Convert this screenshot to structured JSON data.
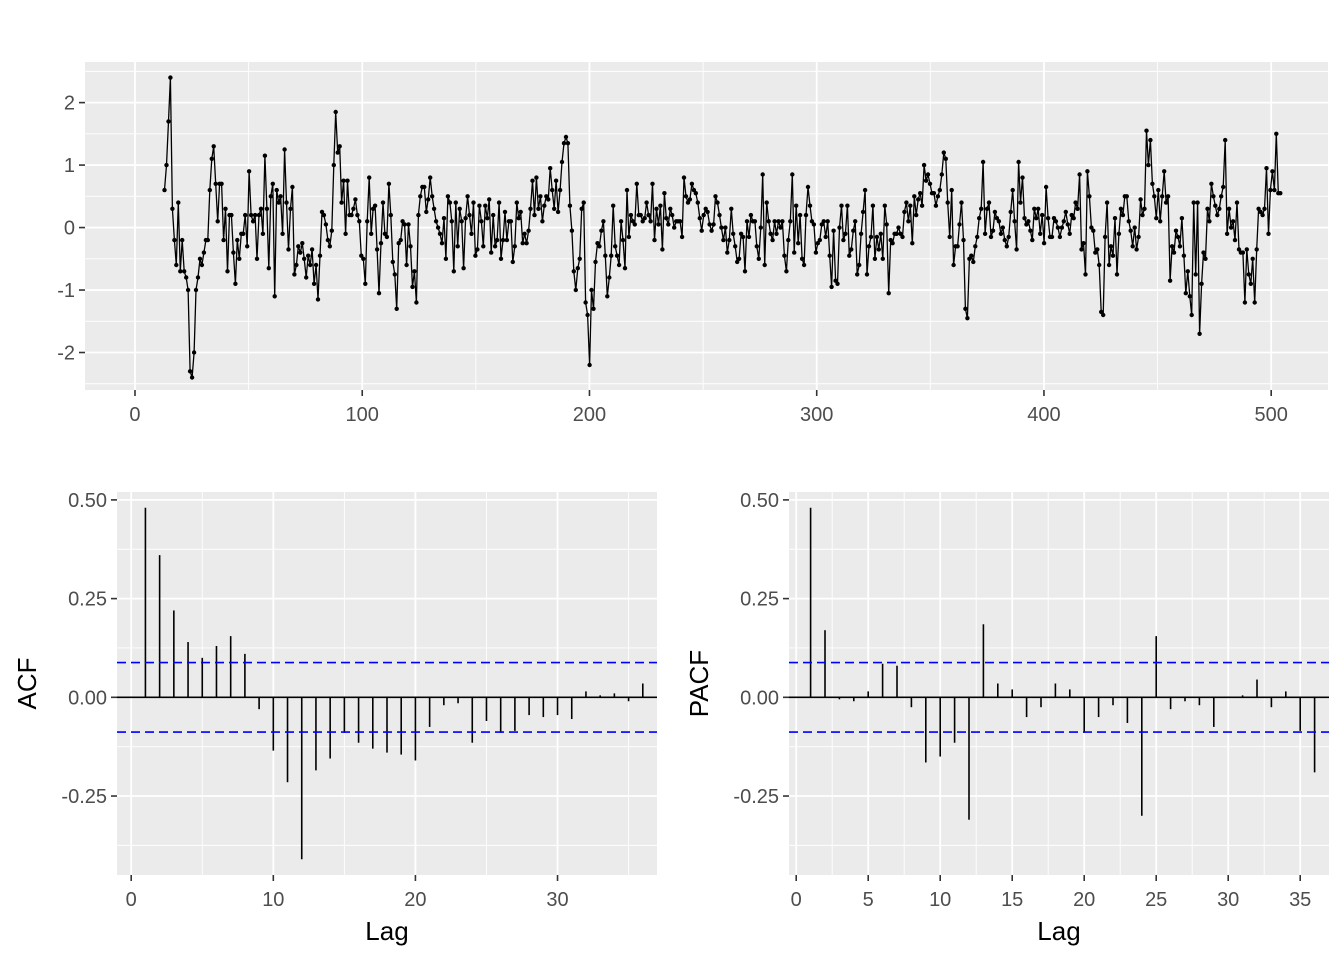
{
  "chart_data": [
    {
      "type": "line",
      "title": "",
      "xlabel": "",
      "ylabel": "",
      "xlim": [
        -22,
        525
      ],
      "ylim": [
        -2.6,
        2.65
      ],
      "x_ticks": [
        0,
        100,
        200,
        300,
        400,
        500
      ],
      "x_tick_labels": [
        "0",
        "100",
        "200",
        "300",
        "400",
        "500"
      ],
      "y_ticks": [
        -2,
        -1,
        0,
        1,
        2
      ],
      "y_tick_labels": [
        "-2",
        "-1",
        "0",
        "1",
        "2"
      ],
      "grid": true,
      "points": true,
      "x_start": 13,
      "x_end": 504,
      "values": [
        0.6,
        1.0,
        1.7,
        2.4,
        0.3,
        -0.2,
        -0.6,
        0.4,
        -0.7,
        -0.2,
        -0.7,
        -0.8,
        -1.0,
        -2.3,
        -2.4,
        -2.0,
        -1.0,
        -0.8,
        -0.5,
        -0.6,
        -0.4,
        -0.2,
        -0.2,
        0.6,
        1.1,
        1.3,
        0.7,
        0.1,
        0.7,
        0.7,
        -0.2,
        0.3,
        -0.7,
        0.2,
        0.2,
        -0.4,
        -0.9,
        -0.2,
        -0.5,
        -0.1,
        -0.1,
        0.2,
        -0.3,
        0.9,
        0.2,
        0.1,
        0.2,
        -0.5,
        0.2,
        0.3,
        -0.1,
        1.15,
        0.3,
        -0.65,
        0.5,
        0.7,
        -1.1,
        0.6,
        0.4,
        0.5,
        -0.1,
        1.25,
        0.4,
        -0.35,
        0.3,
        0.65,
        -0.75,
        -0.6,
        -0.3,
        -0.4,
        -0.25,
        -0.5,
        -0.8,
        -0.45,
        -0.6,
        -0.35,
        -0.9,
        -0.6,
        -1.15,
        -0.45,
        0.25,
        0.2,
        0.05,
        -0.2,
        -0.3,
        -0.05,
        1.0,
        1.85,
        1.2,
        1.3,
        0.4,
        0.75,
        -0.1,
        0.75,
        0.2,
        0.2,
        0.3,
        0.45,
        0.2,
        0.1,
        -0.45,
        -0.5,
        -0.9,
        0.1,
        0.8,
        -0.1,
        0.3,
        0.35,
        -0.35,
        -1.05,
        -0.25,
        0.4,
        -0.1,
        -0.15,
        0.7,
        0.2,
        -0.55,
        -0.75,
        -1.3,
        -0.25,
        -0.2,
        0.1,
        0.05,
        -0.6,
        0.05,
        -0.3,
        -0.95,
        -0.7,
        -1.2,
        0.2,
        0.5,
        0.65,
        0.65,
        0.25,
        0.45,
        0.8,
        0.5,
        0.3,
        0.1,
        0.0,
        -0.1,
        -0.25,
        0.15,
        -0.5,
        0.5,
        0.4,
        0.1,
        -0.7,
        0.4,
        -0.3,
        0.3,
        0.1,
        -0.65,
        0.15,
        0.5,
        0.2,
        -0.1,
        0.4,
        -0.45,
        -0.35,
        0.35,
        0.1,
        -0.3,
        0.35,
        0.15,
        0.45,
        -0.4,
        0.2,
        -0.3,
        -0.2,
        0.4,
        -0.5,
        -0.2,
        0.25,
        -0.2,
        0.1,
        0.1,
        -0.55,
        -0.3,
        0.4,
        0.15,
        0.25,
        -0.25,
        -0.1,
        -0.25,
        -0.05,
        0.3,
        0.75,
        0.2,
        0.8,
        0.3,
        0.5,
        0.1,
        0.35,
        0.5,
        0.45,
        0.95,
        0.6,
        0.3,
        0.75,
        0.25,
        0.6,
        1.05,
        1.35,
        1.45,
        1.35,
        0.35,
        -0.05,
        -0.7,
        -1.0,
        -0.65,
        -0.5,
        0.3,
        0.4,
        -1.2,
        -1.4,
        -2.2,
        -1.0,
        -1.3,
        -0.55,
        -0.25,
        -0.3,
        -0.05,
        0.1,
        -0.45,
        -1.1,
        -0.8,
        -0.45,
        0.35,
        -0.3,
        -0.45,
        -0.6,
        0.1,
        -0.2,
        -0.65,
        0.6,
        -0.15,
        0.2,
        0.1,
        0.05,
        0.7,
        0.2,
        0.2,
        0.1,
        0.15,
        0.4,
        0.2,
        0.1,
        0.7,
        -0.2,
        0.3,
        0.05,
        0.35,
        -0.35,
        0.55,
        0.15,
        0.05,
        0.3,
        0.2,
        0.0,
        0.1,
        0.1,
        0.1,
        -0.15,
        0.8,
        0.5,
        0.4,
        0.45,
        0.7,
        0.6,
        0.55,
        0.4,
        0.15,
        -0.05,
        0.2,
        0.3,
        0.25,
        0.05,
        -0.05,
        0.05,
        0.5,
        0.4,
        0.2,
        0.0,
        -0.2,
        0.0,
        -0.4,
        -0.2,
        0.3,
        -0.1,
        -0.3,
        -0.55,
        -0.5,
        -0.1,
        -0.15,
        -0.7,
        0.1,
        -0.15,
        0.2,
        0.1,
        0.1,
        -0.3,
        -0.5,
        0.0,
        0.85,
        -0.6,
        0.4,
        0.1,
        -0.1,
        -0.2,
        0.1,
        -0.1,
        0.1,
        0.0,
        0.1,
        -0.45,
        -0.7,
        -0.2,
        0.1,
        0.85,
        -0.4,
        0.35,
        -0.25,
        0.2,
        -0.5,
        -0.6,
        0.2,
        0.65,
        0.35,
        0.1,
        0.05,
        -0.4,
        -0.25,
        -0.2,
        0.05,
        0.1,
        -0.15,
        0.1,
        -0.45,
        -0.95,
        -0.05,
        -0.85,
        -0.9,
        0.0,
        0.35,
        -0.2,
        -0.1,
        0.35,
        -0.45,
        -0.35,
        -0.05,
        0.1,
        -0.75,
        -0.6,
        -0.1,
        0.25,
        0.6,
        -0.75,
        -0.3,
        -0.15,
        0.35,
        -0.5,
        -0.15,
        -0.35,
        -0.1,
        -0.5,
        0.35,
        0.05,
        -1.05,
        -0.2,
        -0.25,
        -0.1,
        -0.1,
        0.0,
        -0.1,
        -0.15,
        0.25,
        0.4,
        0.1,
        0.35,
        -0.25,
        0.5,
        0.2,
        0.45,
        0.55,
        0.35,
        1.0,
        0.75,
        0.85,
        0.7,
        0.55,
        0.55,
        0.35,
        0.5,
        0.6,
        0.85,
        1.2,
        1.1,
        0.4,
        -0.15,
        0.6,
        -0.6,
        -0.3,
        -0.3,
        0.05,
        0.4,
        -0.2,
        -1.3,
        -1.45,
        -0.5,
        -0.45,
        -0.55,
        -0.3,
        -0.15,
        0.15,
        0.3,
        1.05,
        -0.1,
        0.3,
        0.4,
        -0.15,
        -0.05,
        0.25,
        0.15,
        0.1,
        -0.1,
        0.0,
        -0.2,
        -0.3,
        -0.15,
        0.25,
        0.6,
        0.1,
        -0.35,
        1.05,
        0.4,
        0.8,
        0.15,
        0.05,
        0.1,
        -0.05,
        -0.2,
        0.3,
        0.15,
        0.3,
        -0.1,
        0.2,
        -0.25,
        0.65,
        0.15,
        -0.15,
        -0.15,
        0.15,
        0.1,
        0.0,
        -0.15,
        0.0,
        0.1,
        0.25,
        0.05,
        -0.1,
        0.2,
        0.15,
        0.4,
        0.3,
        0.85,
        -0.35,
        -0.25,
        -0.75,
        0.9,
        0.5,
        0.0,
        -0.05,
        -0.4,
        -0.35,
        -0.6,
        -1.35,
        -1.4,
        -0.15,
        0.4,
        -0.6,
        -0.3,
        -0.45,
        0.15,
        -0.75,
        -0.1,
        0.3,
        0.2,
        0.5,
        0.5,
        0.1,
        -0.05,
        -0.3,
        0.0,
        -0.35,
        -0.15,
        0.45,
        0.2,
        0.3,
        1.55,
        1.0,
        1.4,
        0.7,
        0.5,
        0.15,
        0.6,
        0.1,
        0.5,
        0.9,
        0.4,
        0.5,
        -0.85,
        -0.3,
        -0.4,
        -0.05,
        -0.15,
        -0.3,
        0.15,
        -0.45,
        -1.05,
        -0.7,
        -1.1,
        -1.4,
        0.4,
        -0.75,
        0.4,
        -1.7,
        -0.9,
        -0.4,
        -0.5,
        0.3,
        0.1,
        0.7,
        0.5,
        0.35,
        0.2,
        0.3,
        0.5,
        0.65,
        1.4,
        -0.1,
        0.3,
        0.0,
        0.1,
        -0.2,
        0.4,
        -0.35,
        -0.4,
        -0.4,
        -1.2,
        -0.35,
        -0.75,
        -0.9,
        -0.5,
        -1.2,
        -0.35,
        0.3,
        0.25,
        0.2,
        0.3,
        0.95,
        -0.1,
        0.6,
        0.9,
        0.6,
        1.5,
        0.55,
        0.55
      ]
    },
    {
      "type": "bar",
      "title": "",
      "xlabel": "Lag",
      "ylabel": "ACF",
      "xlim": [
        -1,
        37
      ],
      "ylim": [
        -0.45,
        0.52
      ],
      "x_ticks": [
        0,
        10,
        20,
        30
      ],
      "x_tick_labels": [
        "0",
        "10",
        "20",
        "30"
      ],
      "y_ticks": [
        -0.25,
        0.0,
        0.25,
        0.5
      ],
      "y_tick_labels": [
        "-0.25",
        "0.00",
        "0.25",
        "0.50"
      ],
      "grid": true,
      "confidence_band": 0.088,
      "lags": [
        1,
        2,
        3,
        4,
        5,
        6,
        7,
        8,
        9,
        10,
        11,
        12,
        13,
        14,
        15,
        16,
        17,
        18,
        19,
        20,
        21,
        22,
        23,
        24,
        25,
        26,
        27,
        28,
        29,
        30,
        31,
        32,
        33,
        34,
        35,
        36
      ],
      "values": [
        0.48,
        0.36,
        0.22,
        0.14,
        0.1,
        0.13,
        0.155,
        0.11,
        -0.03,
        -0.135,
        -0.215,
        -0.41,
        -0.185,
        -0.155,
        -0.09,
        -0.115,
        -0.13,
        -0.14,
        -0.145,
        -0.16,
        -0.075,
        -0.02,
        -0.015,
        -0.115,
        -0.06,
        -0.09,
        -0.085,
        -0.045,
        -0.05,
        -0.045,
        -0.055,
        0.015,
        0.005,
        0.01,
        -0.01,
        0.035
      ]
    },
    {
      "type": "bar",
      "title": "",
      "xlabel": "Lag",
      "ylabel": "PACF",
      "xlim": [
        -0.5,
        37
      ],
      "ylim": [
        -0.45,
        0.52
      ],
      "x_ticks": [
        0,
        5,
        10,
        15,
        20,
        25,
        30,
        35
      ],
      "x_tick_labels": [
        "0",
        "5",
        "10",
        "15",
        "20",
        "25",
        "30",
        "35"
      ],
      "y_ticks": [
        -0.25,
        0.0,
        0.25,
        0.5
      ],
      "y_tick_labels": [
        "-0.25",
        "0.00",
        "0.25",
        "0.50"
      ],
      "grid": true,
      "confidence_band": 0.088,
      "lags": [
        1,
        2,
        3,
        4,
        5,
        6,
        7,
        8,
        9,
        10,
        11,
        12,
        13,
        14,
        15,
        16,
        17,
        18,
        19,
        20,
        21,
        22,
        23,
        24,
        25,
        26,
        27,
        28,
        29,
        30,
        31,
        32,
        33,
        34,
        35,
        36
      ],
      "values": [
        0.48,
        0.17,
        -0.005,
        -0.01,
        0.015,
        0.085,
        0.08,
        -0.025,
        -0.165,
        -0.15,
        -0.115,
        -0.31,
        0.185,
        0.035,
        0.02,
        -0.05,
        -0.025,
        0.035,
        0.02,
        -0.09,
        -0.05,
        -0.02,
        -0.065,
        -0.3,
        0.155,
        -0.03,
        -0.01,
        -0.02,
        -0.075,
        0.0,
        0.005,
        0.045,
        -0.025,
        0.015,
        -0.085,
        -0.19
      ]
    }
  ]
}
